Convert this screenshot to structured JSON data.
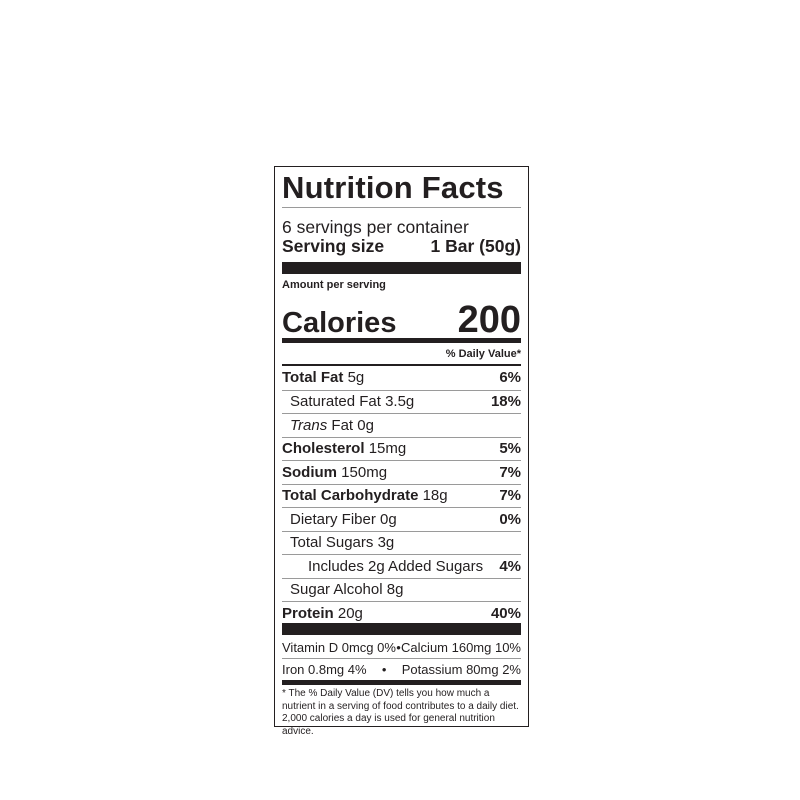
{
  "title": "Nutrition Facts",
  "servings_per_container": "6 servings per container",
  "serving_size_label": "Serving size",
  "serving_size_value": "1 Bar (50g)",
  "amount_per_serving": "Amount per serving",
  "calories_label": "Calories",
  "calories_value": "200",
  "daily_value_header": "% Daily Value*",
  "nutrients": [
    {
      "name": "Total Fat",
      "amount": "5g",
      "dv": "6%"
    },
    {
      "name": "Saturated Fat",
      "amount": "3.5g",
      "dv": "18%"
    },
    {
      "name": "Trans",
      "amount": "Fat 0g",
      "dv": ""
    },
    {
      "name": "Cholesterol",
      "amount": "15mg",
      "dv": "5%"
    },
    {
      "name": "Sodium",
      "amount": "150mg",
      "dv": "7%"
    },
    {
      "name": "Total Carbohydrate",
      "amount": "18g",
      "dv": "7%"
    },
    {
      "name": "Dietary Fiber",
      "amount": "0g",
      "dv": "0%"
    },
    {
      "name": "Total Sugars",
      "amount": "3g",
      "dv": ""
    },
    {
      "name": "Includes 2g Added Sugars",
      "amount": "",
      "dv": "4%"
    },
    {
      "name": "Sugar Alcohol",
      "amount": "8g",
      "dv": ""
    },
    {
      "name": "Protein",
      "amount": "20g",
      "dv": "40%"
    }
  ],
  "vitamins": [
    {
      "left": "Vitamin D 0mcg 0%",
      "sep": "•",
      "right": "Calcium 160mg 10%"
    },
    {
      "left": "Iron 0.8mg 4%",
      "sep": "•",
      "right": "Potassium 80mg 2%"
    }
  ],
  "footnote": "* The % Daily Value (DV) tells you how much a nutrient in a serving of food contributes to a daily diet. 2,000 calories a day is used for general nutrition advice."
}
